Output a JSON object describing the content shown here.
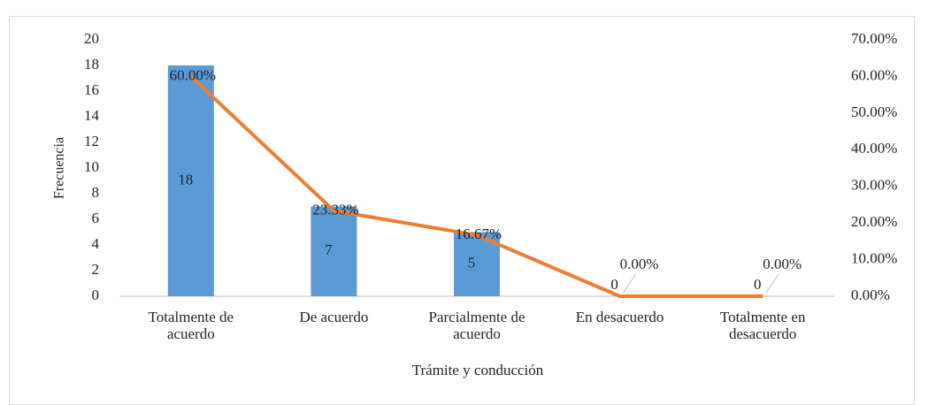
{
  "chart_data": {
    "type": "bar",
    "ylabel": "Frecuencia",
    "xlabel": "Trámite y conducción",
    "categories": [
      "Totalmente de acuerdo",
      "De acuerdo",
      "Parcialmente de acuerdo",
      "En desacuerdo",
      "Totalmente en desacuerdo"
    ],
    "series": [
      {
        "type": "bar",
        "color": "#5b9bd5",
        "values": [
          18,
          7,
          5,
          0,
          0
        ]
      },
      {
        "type": "line",
        "axis": "y2",
        "color": "#ed7d31",
        "values": [
          60,
          23.33,
          16.67,
          0,
          0
        ],
        "value_labels": [
          "60.00%",
          "23.33%",
          "16.67%",
          "0.00%",
          "0.00%"
        ]
      }
    ],
    "ylim": [
      0,
      20
    ],
    "yticks": [
      0,
      2,
      4,
      6,
      8,
      10,
      12,
      14,
      16,
      18,
      20
    ],
    "y2lim": [
      0,
      70
    ],
    "y2ticks": [
      {
        "value": 0,
        "label": "0.00%"
      },
      {
        "value": 10,
        "label": "10.00%"
      },
      {
        "value": 20,
        "label": "20.00%"
      },
      {
        "value": 30,
        "label": "30.00%"
      },
      {
        "value": 40,
        "label": "40.00%"
      },
      {
        "value": 50,
        "label": "50.00%"
      },
      {
        "value": 60,
        "label": "60.00%"
      },
      {
        "value": 70,
        "label": "70.00%"
      }
    ],
    "grid": false
  }
}
